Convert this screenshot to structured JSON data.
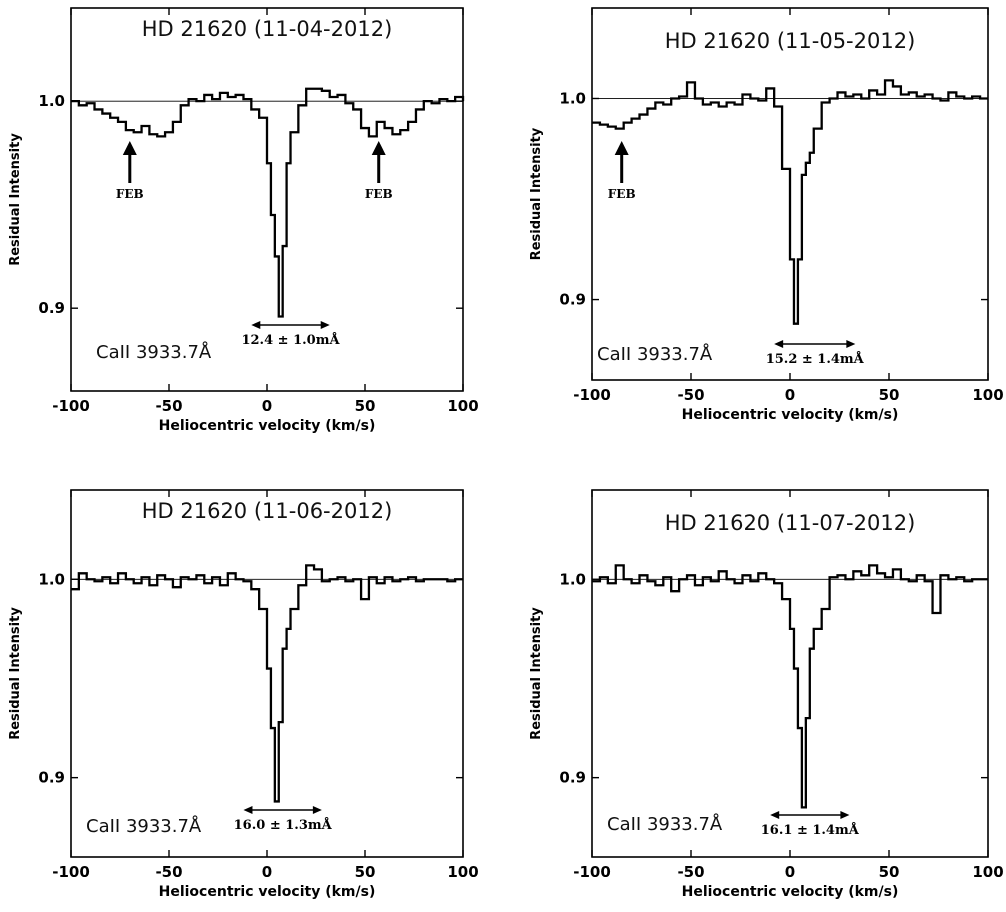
{
  "figure": {
    "panels": [
      {
        "title": "HD 21620   (11-04-2012)",
        "line_label": "CaII 3933.7Å",
        "measurement": "12.4 ± 1.0mÅ",
        "feb_label": "FEB"
      },
      {
        "title": "HD 21620   (11-05-2012)",
        "line_label": "CaII 3933.7Å",
        "measurement": "15.2 ± 1.4mÅ",
        "feb_label": "FEB"
      },
      {
        "title": "HD 21620   (11-06-2012)",
        "line_label": "CaII 3933.7Å",
        "measurement": "16.0 ± 1.3mÅ",
        "feb_label": ""
      },
      {
        "title": "HD 21620   (11-07-2012)",
        "line_label": "CaII 3933.7Å",
        "measurement": "16.1 ± 1.4mÅ",
        "feb_label": ""
      }
    ]
  },
  "chart_data": [
    {
      "type": "line",
      "step": true,
      "title": "HD 21620   (11-04-2012)",
      "xlabel": "Heliocentric velocity (km/s)",
      "ylabel": "Residual Intensity",
      "xlim": [
        -100,
        100
      ],
      "ylim": [
        0.86,
        1.045
      ],
      "xticks": [
        -100,
        -50,
        0,
        50,
        100
      ],
      "yticks": [
        0.9,
        1.0
      ],
      "reference_line": 1.0,
      "annotations": {
        "line_label": "CaII 3933.7Å",
        "measurement": "12.4 ± 1.0mÅ",
        "measurement_range": [
          -8,
          32
        ],
        "feb_label": "FEB",
        "feb_markers": [
          -70,
          57
        ]
      },
      "series": [
        {
          "x": [
            -100,
            -96,
            -92,
            -88,
            -84,
            -80,
            -76,
            -72,
            -68,
            -64,
            -60,
            -56,
            -52,
            -48,
            -44,
            -40,
            -36,
            -32,
            -28,
            -24,
            -20,
            -16,
            -12,
            -8,
            -4,
            0,
            2,
            4,
            6,
            8,
            10,
            12,
            16,
            20,
            24,
            28,
            32,
            36,
            40,
            44,
            48,
            52,
            56,
            60,
            64,
            68,
            72,
            76,
            80,
            84,
            88,
            92,
            96,
            100
          ],
          "y": [
            1.0,
            0.998,
            0.999,
            0.996,
            0.994,
            0.992,
            0.99,
            0.986,
            0.985,
            0.988,
            0.984,
            0.983,
            0.985,
            0.99,
            0.998,
            1.001,
            1.0,
            1.003,
            1.001,
            1.004,
            1.002,
            1.003,
            1.001,
            0.996,
            0.992,
            0.97,
            0.945,
            0.925,
            0.896,
            0.93,
            0.97,
            0.985,
            0.998,
            1.006,
            1.006,
            1.005,
            1.002,
            1.003,
            0.999,
            0.996,
            0.987,
            0.983,
            0.99,
            0.987,
            0.984,
            0.986,
            0.99,
            0.996,
            1.0,
            0.999,
            1.001,
            1.0,
            1.002,
            1.0
          ]
        }
      ]
    },
    {
      "type": "line",
      "step": true,
      "title": "HD 21620   (11-05-2012)",
      "xlabel": "Heliocentric velocity (km/s)",
      "ylabel": "Residual Intensity",
      "xlim": [
        -100,
        100
      ],
      "ylim": [
        0.86,
        1.045
      ],
      "xticks": [
        -100,
        -50,
        0,
        50,
        100
      ],
      "yticks": [
        0.9,
        1.0
      ],
      "reference_line": 1.0,
      "annotations": {
        "line_label": "CaII 3933.7Å",
        "measurement": "15.2 ± 1.4mÅ",
        "measurement_range": [
          -8,
          33
        ],
        "feb_label": "FEB",
        "feb_markers": [
          -85
        ]
      },
      "series": [
        {
          "x": [
            -100,
            -96,
            -92,
            -88,
            -84,
            -80,
            -76,
            -72,
            -68,
            -64,
            -60,
            -56,
            -52,
            -48,
            -44,
            -40,
            -36,
            -32,
            -28,
            -24,
            -20,
            -16,
            -12,
            -8,
            -4,
            0,
            2,
            4,
            6,
            8,
            10,
            12,
            16,
            20,
            24,
            28,
            32,
            36,
            40,
            44,
            48,
            52,
            56,
            60,
            64,
            68,
            72,
            76,
            80,
            84,
            88,
            92,
            96,
            100
          ],
          "y": [
            0.988,
            0.987,
            0.986,
            0.985,
            0.988,
            0.99,
            0.992,
            0.995,
            0.998,
            0.997,
            1.0,
            1.001,
            1.008,
            1.0,
            0.997,
            0.998,
            0.996,
            0.998,
            0.997,
            1.002,
            1.0,
            0.999,
            1.005,
            0.996,
            0.965,
            0.92,
            0.888,
            0.92,
            0.962,
            0.968,
            0.973,
            0.985,
            0.998,
            1.0,
            1.003,
            1.001,
            1.002,
            1.0,
            1.004,
            1.002,
            1.009,
            1.006,
            1.002,
            1.003,
            1.001,
            1.002,
            1.0,
            0.999,
            1.003,
            1.001,
            1.0,
            1.001,
            1.0,
            1.0
          ]
        }
      ]
    },
    {
      "type": "line",
      "step": true,
      "title": "HD 21620   (11-06-2012)",
      "xlabel": "Heliocentric velocity (km/s)",
      "ylabel": "Residual Intensity",
      "xlim": [
        -100,
        100
      ],
      "ylim": [
        0.86,
        1.045
      ],
      "xticks": [
        -100,
        -50,
        0,
        50,
        100
      ],
      "yticks": [
        0.9,
        1.0
      ],
      "reference_line": 1.0,
      "annotations": {
        "line_label": "CaII 3933.7Å",
        "measurement": "16.0 ± 1.3mÅ",
        "measurement_range": [
          -12,
          28
        ],
        "feb_label": "",
        "feb_markers": []
      },
      "series": [
        {
          "x": [
            -100,
            -96,
            -92,
            -88,
            -84,
            -80,
            -76,
            -72,
            -68,
            -64,
            -60,
            -56,
            -52,
            -48,
            -44,
            -40,
            -36,
            -32,
            -28,
            -24,
            -20,
            -16,
            -12,
            -8,
            -4,
            0,
            2,
            4,
            6,
            8,
            10,
            12,
            16,
            20,
            24,
            28,
            32,
            36,
            40,
            44,
            48,
            52,
            56,
            60,
            64,
            68,
            72,
            76,
            80,
            84,
            88,
            92,
            96,
            100
          ],
          "y": [
            0.995,
            1.003,
            1.0,
            0.999,
            1.001,
            0.998,
            1.003,
            1.0,
            0.998,
            1.001,
            0.997,
            1.002,
            1.0,
            0.996,
            1.001,
            1.0,
            1.002,
            0.998,
            1.001,
            0.997,
            1.003,
            1.0,
            0.999,
            0.995,
            0.985,
            0.955,
            0.925,
            0.888,
            0.928,
            0.965,
            0.975,
            0.985,
            0.997,
            1.007,
            1.005,
            0.999,
            1.0,
            1.001,
            0.999,
            1.0,
            0.99,
            1.001,
            0.998,
            1.001,
            0.999,
            1.0,
            1.001,
            0.999,
            1.0,
            1.0,
            1.0,
            0.999,
            1.0,
            1.0
          ]
        }
      ]
    },
    {
      "type": "line",
      "step": true,
      "title": "HD 21620   (11-07-2012)",
      "xlabel": "Heliocentric velocity (km/s)",
      "ylabel": "Residual Intensity",
      "xlim": [
        -100,
        100
      ],
      "ylim": [
        0.86,
        1.045
      ],
      "xticks": [
        -100,
        -50,
        0,
        50,
        100
      ],
      "yticks": [
        0.9,
        1.0
      ],
      "reference_line": 1.0,
      "annotations": {
        "line_label": "CaII 3933.7Å",
        "measurement": "16.1 ± 1.4mÅ",
        "measurement_range": [
          -10,
          30
        ],
        "feb_label": "",
        "feb_markers": []
      },
      "series": [
        {
          "x": [
            -100,
            -96,
            -92,
            -88,
            -84,
            -80,
            -76,
            -72,
            -68,
            -64,
            -60,
            -56,
            -52,
            -48,
            -44,
            -40,
            -36,
            -32,
            -28,
            -24,
            -20,
            -16,
            -12,
            -8,
            -4,
            0,
            2,
            4,
            6,
            8,
            10,
            12,
            16,
            20,
            24,
            28,
            32,
            36,
            40,
            44,
            48,
            52,
            56,
            60,
            64,
            68,
            72,
            76,
            80,
            84,
            88,
            92,
            96,
            100
          ],
          "y": [
            0.999,
            1.001,
            0.998,
            1.007,
            1.0,
            0.998,
            1.002,
            0.999,
            0.997,
            1.001,
            0.994,
            1.0,
            1.002,
            0.997,
            1.001,
            0.999,
            1.004,
            1.0,
            0.998,
            1.002,
            0.999,
            1.003,
            1.0,
            0.998,
            0.99,
            0.975,
            0.955,
            0.925,
            0.885,
            0.93,
            0.965,
            0.975,
            0.985,
            1.001,
            1.002,
            1.0,
            1.004,
            1.002,
            1.007,
            1.003,
            1.001,
            1.005,
            1.0,
            0.999,
            1.002,
            0.999,
            0.983,
            1.002,
            1.0,
            1.001,
            0.999,
            1.0,
            1.0,
            1.0
          ]
        }
      ]
    }
  ]
}
